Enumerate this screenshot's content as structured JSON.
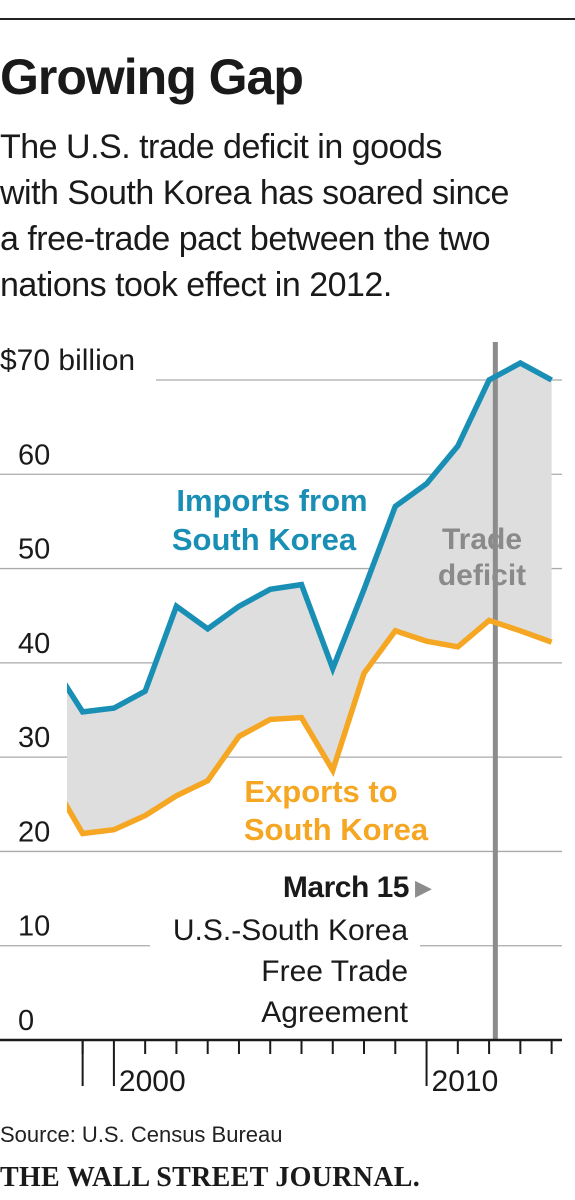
{
  "header": {
    "title": "Growing Gap",
    "subtitle_lines": [
      "The U.S. trade deficit in goods",
      "with South Korea has soared since",
      "a free-trade pact between the two",
      "nations took effect in 2012."
    ]
  },
  "chart_data": {
    "type": "line",
    "ylabel_top": "$70 billion",
    "y_ticks": [
      {
        "value": 70,
        "label": "$70 billion"
      },
      {
        "value": 60,
        "label": "60"
      },
      {
        "value": 50,
        "label": "50"
      },
      {
        "value": 40,
        "label": "40"
      },
      {
        "value": 30,
        "label": "30"
      },
      {
        "value": 20,
        "label": "20"
      },
      {
        "value": 10,
        "label": "10"
      },
      {
        "value": 0,
        "label": "0"
      }
    ],
    "x_tick_labels": [
      {
        "year": 2000,
        "label": "2000"
      },
      {
        "year": 2010,
        "label": "2010"
      }
    ],
    "ylim": [
      0,
      70
    ],
    "xlim": [
      1998.5,
      2014.3
    ],
    "x": [
      1998,
      1999,
      2000,
      2001,
      2002,
      2003,
      2004,
      2005,
      2006,
      2007,
      2008,
      2009,
      2010,
      2011,
      2012,
      2013,
      2014
    ],
    "series": [
      {
        "name": "Imports from South Korea",
        "color": "#1a8fb5",
        "values": [
          40.0,
          34.8,
          35.2,
          37.0,
          46.0,
          43.6,
          46.0,
          47.8,
          48.3,
          39.4,
          47.8,
          56.6,
          59.0,
          63.0,
          70.0,
          71.8,
          70.0
        ]
      },
      {
        "name": "Exports to South Korea",
        "color": "#f5a623",
        "values": [
          27.6,
          21.9,
          22.3,
          23.8,
          25.9,
          27.5,
          32.2,
          34.0,
          34.2,
          28.6,
          38.9,
          43.4,
          42.3,
          41.7,
          44.5,
          43.4,
          42.2
        ]
      }
    ],
    "fill_label_lines": [
      "Trade",
      "deficit"
    ],
    "series_label_lines": {
      "imports": [
        "Imports from",
        "South Korea"
      ],
      "exports": [
        "Exports to",
        "South Korea"
      ]
    },
    "marker": {
      "date_label": "March 15",
      "arrow": "▶",
      "desc_lines": [
        "U.S.-South Korea",
        "Free Trade",
        "Agreement"
      ],
      "year": 2012.2
    },
    "colors": {
      "imports": "#1a8fb5",
      "exports": "#f5a623",
      "fill": "#dedede",
      "marker_line": "#8c8c8c",
      "grid": "#aaaaaa"
    },
    "grid": true
  },
  "footer": {
    "source": "Source: U.S. Census Bureau",
    "brand": "THE WALL STREET JOURNAL."
  }
}
